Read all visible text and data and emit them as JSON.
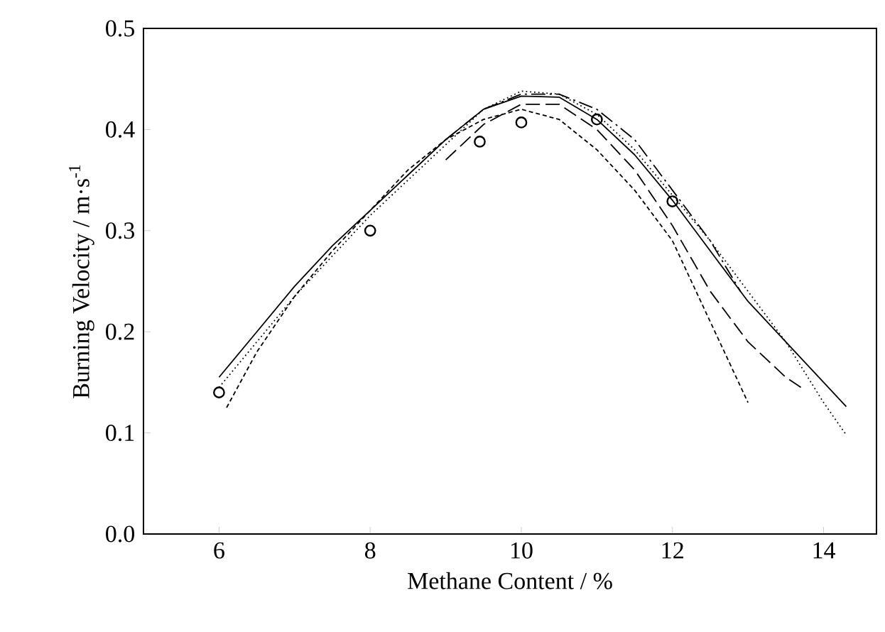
{
  "chart_data": {
    "type": "line",
    "xlabel": "Methane Content / %",
    "ylabel": "Burning Velocity / m·s$^{-1}$",
    "xlim": [
      5,
      14.7
    ],
    "ylim": [
      0,
      0.5
    ],
    "xticks": [
      6,
      8,
      10,
      12,
      14
    ],
    "yticks": [
      {
        "value": 0,
        "label": "0.0"
      },
      {
        "value": 0.1,
        "label": "0.1"
      },
      {
        "value": 0.2,
        "label": "0.2"
      },
      {
        "value": 0.3,
        "label": "0.3"
      },
      {
        "value": 0.4,
        "label": "0.4"
      },
      {
        "value": 0.5,
        "label": "0.5"
      }
    ],
    "grid": false,
    "series": [
      {
        "color": "#000000",
        "line_style": "solid",
        "x": [
          6,
          6.5,
          7,
          7.5,
          8,
          8.5,
          9,
          9.5,
          10,
          10.5,
          11,
          11.5,
          12,
          12.5,
          13,
          13.5,
          14,
          14.3
        ],
        "values": [
          0.155,
          0.2,
          0.245,
          0.285,
          0.32,
          0.355,
          0.39,
          0.42,
          0.433,
          0.432,
          0.41,
          0.375,
          0.33,
          0.28,
          0.23,
          0.19,
          0.15,
          0.126
        ]
      },
      {
        "color": "#000000",
        "line_style": "dotted",
        "x": [
          6,
          6.5,
          7,
          7.5,
          8,
          8.5,
          9,
          9.5,
          10,
          10.5,
          11,
          11.5,
          12,
          12.5,
          13,
          13.5,
          14,
          14.3
        ],
        "values": [
          0.145,
          0.19,
          0.235,
          0.275,
          0.315,
          0.35,
          0.385,
          0.42,
          0.438,
          0.435,
          0.415,
          0.38,
          0.335,
          0.29,
          0.24,
          0.19,
          0.13,
          0.098
        ]
      },
      {
        "color": "#000000",
        "line_style": "dashed",
        "x": [
          6.1,
          6.5,
          7,
          7.5,
          8,
          8.5,
          9,
          9.5,
          10,
          10.5,
          11,
          11.5,
          12,
          12.5,
          13
        ],
        "values": [
          0.125,
          0.18,
          0.235,
          0.28,
          0.32,
          0.36,
          0.39,
          0.41,
          0.42,
          0.41,
          0.38,
          0.34,
          0.29,
          0.21,
          0.13
        ]
      },
      {
        "color": "#000000",
        "line_style": "long dashed",
        "x": [
          9,
          9.5,
          10,
          10.5,
          11,
          11.5,
          12,
          12.5,
          13,
          13.5,
          13.7
        ],
        "values": [
          0.37,
          0.405,
          0.425,
          0.425,
          0.4,
          0.36,
          0.305,
          0.24,
          0.19,
          0.155,
          0.145
        ]
      },
      {
        "color": "#000000",
        "line_style": "dash dot",
        "x": [
          9,
          9.5,
          10,
          10.5,
          11,
          11.5,
          12,
          12.5,
          12.9
        ],
        "values": [
          0.39,
          0.42,
          0.435,
          0.435,
          0.42,
          0.39,
          0.34,
          0.29,
          0.24
        ]
      },
      {
        "type": "scatter",
        "color": "#000000",
        "marker": "circle",
        "x": [
          6,
          8,
          9.45,
          10,
          11,
          12
        ],
        "values": [
          0.14,
          0.3,
          0.388,
          0.407,
          0.41,
          0.329
        ]
      }
    ]
  }
}
